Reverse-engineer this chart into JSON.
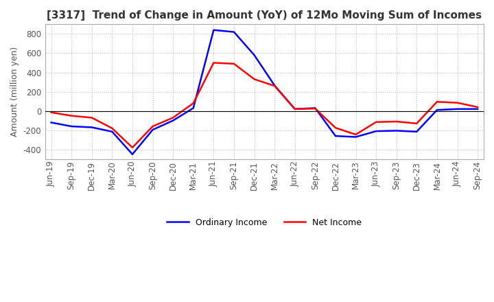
{
  "title": "[3317]  Trend of Change in Amount (YoY) of 12Mo Moving Sum of Incomes",
  "ylabel": "Amount (million yen)",
  "title_fontsize": 11,
  "label_fontsize": 9,
  "tick_fontsize": 8.5,
  "x_labels": [
    "Jun-19",
    "Sep-19",
    "Dec-19",
    "Mar-20",
    "Jun-20",
    "Sep-20",
    "Dec-20",
    "Mar-21",
    "Jun-21",
    "Sep-21",
    "Dec-21",
    "Mar-22",
    "Jun-22",
    "Sep-22",
    "Dec-22",
    "Mar-23",
    "Jun-23",
    "Sep-23",
    "Dec-23",
    "Mar-24",
    "Jun-24",
    "Sep-24"
  ],
  "ordinary_income": [
    -120,
    -160,
    -170,
    -215,
    -450,
    -195,
    -100,
    30,
    840,
    820,
    580,
    265,
    20,
    30,
    -260,
    -270,
    -210,
    -205,
    -215,
    10,
    20,
    20
  ],
  "net_income": [
    -15,
    -50,
    -70,
    -180,
    -380,
    -160,
    -70,
    80,
    500,
    490,
    330,
    260,
    20,
    25,
    -175,
    -245,
    -115,
    -110,
    -130,
    95,
    85,
    40
  ],
  "ordinary_color": "#0000FF",
  "net_color": "#FF0000",
  "grid_color": "#BBBBBB",
  "background_color": "#FFFFFF",
  "ylim": [
    -500,
    900
  ],
  "yticks": [
    -400,
    -200,
    0,
    200,
    400,
    600,
    800
  ]
}
